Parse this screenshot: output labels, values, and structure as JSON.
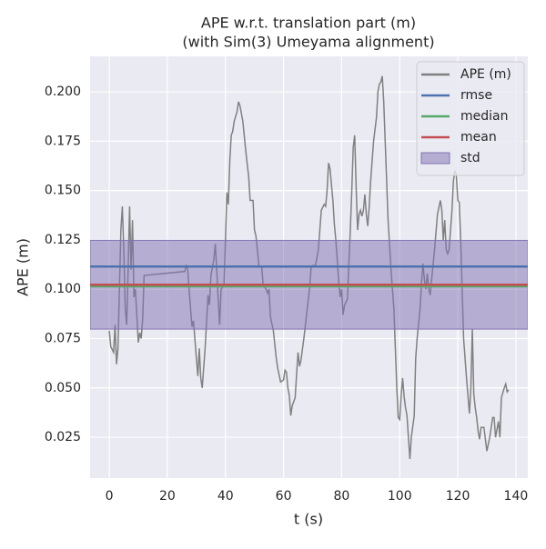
{
  "chart_data": {
    "type": "line",
    "title": "APE w.r.t. translation part (m)",
    "subtitle": "(with Sim(3) Umeyama alignment)",
    "x_label": "t (s)",
    "y_label": "APE (m)",
    "x": [
      0,
      0.5,
      1.5,
      2,
      2.5,
      3,
      4,
      4.5,
      5,
      5.5,
      6,
      6.5,
      7,
      7.5,
      8,
      8.5,
      9,
      10,
      10.5,
      11,
      11.5,
      12,
      26,
      26.5,
      27,
      28,
      28.5,
      29,
      30,
      30.5,
      31,
      31.5,
      32,
      33,
      34,
      34.5,
      35,
      36,
      36.5,
      37,
      37.5,
      38,
      38.5,
      39.5,
      40,
      40.5,
      41,
      41.5,
      42,
      42.5,
      43,
      44,
      44.5,
      45,
      46,
      47,
      48,
      48.5,
      49.5,
      50,
      50.5,
      51,
      51.5,
      52.5,
      53,
      54,
      54.5,
      55,
      55.5,
      56.5,
      57.5,
      58,
      59,
      60,
      60.5,
      61,
      61.5,
      62,
      62.5,
      63,
      64,
      64.5,
      65,
      65.5,
      66,
      67,
      68,
      69,
      69.5,
      70,
      71,
      72,
      73,
      74,
      74.5,
      75,
      75.5,
      76,
      77,
      77.5,
      78,
      79,
      79.5,
      80,
      80.5,
      81,
      82,
      82.5,
      83,
      83.5,
      84,
      84.5,
      85,
      85.5,
      86,
      86.5,
      87,
      87.5,
      88,
      88.5,
      89,
      89.5,
      90,
      91,
      92,
      92.5,
      93,
      93.5,
      94,
      94.5,
      95,
      96,
      97,
      98,
      98.5,
      99,
      99.5,
      100,
      100.5,
      101,
      101.5,
      102,
      102.5,
      103,
      103.5,
      104,
      105,
      105.5,
      106,
      107,
      107.5,
      108,
      108.5,
      109,
      109.5,
      110,
      110.5,
      111,
      112,
      113,
      114,
      114.5,
      115,
      115.5,
      116,
      116.5,
      117,
      118,
      118.5,
      119,
      119.5,
      120,
      120.5,
      121,
      122,
      123,
      124,
      124.5,
      125,
      125.5,
      126,
      126.5,
      127,
      127.5,
      128,
      129,
      130,
      131,
      132,
      132.5,
      133,
      134,
      134.5,
      135,
      136,
      136.5,
      137,
      137.5
    ],
    "series": [
      {
        "name": "APE (m)",
        "color": "#808080",
        "values": [
          0.079,
          0.071,
          0.068,
          0.082,
          0.062,
          0.07,
          0.13,
          0.142,
          0.12,
          0.09,
          0.082,
          0.11,
          0.142,
          0.11,
          0.135,
          0.096,
          0.1,
          0.073,
          0.078,
          0.075,
          0.085,
          0.107,
          0.109,
          0.112,
          0.11,
          0.09,
          0.081,
          0.084,
          0.065,
          0.056,
          0.07,
          0.055,
          0.05,
          0.07,
          0.097,
          0.092,
          0.107,
          0.115,
          0.123,
          0.11,
          0.095,
          0.082,
          0.1,
          0.102,
          0.125,
          0.149,
          0.143,
          0.165,
          0.178,
          0.18,
          0.185,
          0.19,
          0.195,
          0.193,
          0.185,
          0.17,
          0.157,
          0.145,
          0.145,
          0.13,
          0.127,
          0.12,
          0.112,
          0.111,
          0.102,
          0.1,
          0.098,
          0.1,
          0.086,
          0.079,
          0.065,
          0.06,
          0.053,
          0.054,
          0.059,
          0.058,
          0.05,
          0.046,
          0.036,
          0.041,
          0.045,
          0.057,
          0.068,
          0.061,
          0.064,
          0.075,
          0.088,
          0.101,
          0.111,
          0.112,
          0.112,
          0.12,
          0.14,
          0.143,
          0.142,
          0.15,
          0.164,
          0.161,
          0.145,
          0.133,
          0.125,
          0.104,
          0.096,
          0.1,
          0.087,
          0.092,
          0.095,
          0.113,
          0.13,
          0.15,
          0.172,
          0.178,
          0.152,
          0.13,
          0.138,
          0.14,
          0.137,
          0.14,
          0.148,
          0.138,
          0.132,
          0.142,
          0.155,
          0.175,
          0.187,
          0.2,
          0.204,
          0.205,
          0.208,
          0.195,
          0.175,
          0.135,
          0.11,
          0.09,
          0.07,
          0.05,
          0.035,
          0.034,
          0.046,
          0.055,
          0.046,
          0.04,
          0.036,
          0.025,
          0.014,
          0.025,
          0.036,
          0.065,
          0.075,
          0.09,
          0.103,
          0.113,
          0.105,
          0.1,
          0.108,
          0.1,
          0.097,
          0.105,
          0.12,
          0.138,
          0.145,
          0.14,
          0.125,
          0.135,
          0.12,
          0.118,
          0.12,
          0.14,
          0.155,
          0.16,
          0.158,
          0.145,
          0.144,
          0.125,
          0.075,
          0.055,
          0.037,
          0.05,
          0.08,
          0.047,
          0.04,
          0.035,
          0.028,
          0.024,
          0.03,
          0.03,
          0.018,
          0.025,
          0.035,
          0.035,
          0.025,
          0.033,
          0.025,
          0.045,
          0.05,
          0.052,
          0.048,
          0.049
        ]
      }
    ],
    "stats": [
      {
        "name": "rmse",
        "color": "#4c72b0",
        "value": 0.1115
      },
      {
        "name": "median",
        "color": "#55a868",
        "value": 0.1015
      },
      {
        "name": "mean",
        "color": "#c44e52",
        "value": 0.1023
      }
    ],
    "std": {
      "name": "std",
      "color": "#8172b2",
      "value": 0.0225
    },
    "xlim": [
      -6.6,
      144.1
    ],
    "ylim": [
      0.0043,
      0.218
    ],
    "xticks": [
      0,
      20,
      40,
      60,
      80,
      100,
      120,
      140
    ],
    "yticks": [
      0.025,
      {
        "value": 0.05,
        "label": "0.050"
      },
      0.075,
      {
        "value": 0.1,
        "label": "0.100"
      },
      0.125,
      {
        "value": 0.15,
        "label": "0.150"
      },
      0.175,
      {
        "value": 0.2,
        "label": "0.200"
      }
    ],
    "grid": true,
    "legend": "upper right"
  }
}
